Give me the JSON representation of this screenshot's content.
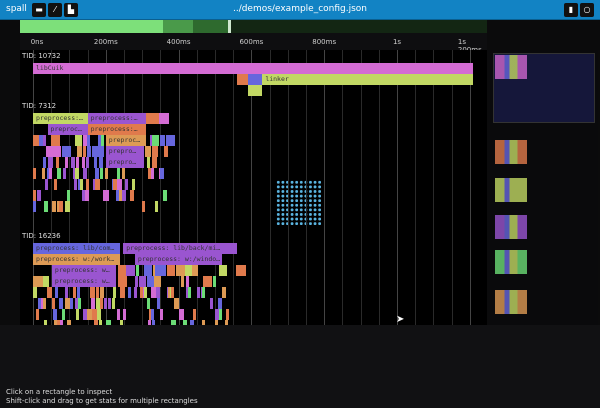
{
  "header": {
    "app_name": "spall",
    "file_name": "../demos/example_config.json",
    "buttons": [
      "folder-open-icon",
      "pen-icon",
      "chart-icon"
    ],
    "right_buttons": [
      "trash-icon",
      "settings-icon"
    ]
  },
  "colors": {
    "header": "#1283c4",
    "pink": "#d46cd4",
    "blue": "#6666dd",
    "violet": "#9a55d0",
    "orange": "#e07a4c",
    "lime": "#c2d864",
    "green": "#6bdc76",
    "amber": "#dd9a55"
  },
  "timeline": {
    "ticks": [
      "0ns",
      "200ms",
      "400ms",
      "600ms",
      "800ms",
      "1s",
      "1s 200ms"
    ],
    "tick_ms": [
      0,
      200,
      400,
      600,
      800,
      1000,
      1200
    ]
  },
  "threads": [
    {
      "label": "TID: 10732",
      "spans": [
        {
          "name": "libCuik",
          "start": 0,
          "end": 1210,
          "depth": 0,
          "color": "pink"
        },
        {
          "name": "",
          "start": 560,
          "end": 590,
          "depth": 1,
          "color": "orange"
        },
        {
          "name": "",
          "start": 590,
          "end": 630,
          "depth": 1,
          "color": "blue"
        },
        {
          "name": "linker",
          "start": 630,
          "end": 1210,
          "depth": 1,
          "color": "lime"
        },
        {
          "name": "",
          "start": 590,
          "end": 630,
          "depth": 2,
          "color": "lime"
        }
      ]
    },
    {
      "label": "TID: 7312",
      "spans": [
        {
          "name": "preprocess:…",
          "start": 0,
          "end": 150,
          "depth": 0,
          "color": "lime"
        },
        {
          "name": "preprocess:…",
          "start": 150,
          "end": 310,
          "depth": 0,
          "color": "violet"
        },
        {
          "name": "",
          "start": 310,
          "end": 345,
          "depth": 0,
          "color": "orange"
        },
        {
          "name": "",
          "start": 345,
          "end": 375,
          "depth": 0,
          "color": "pink"
        },
        {
          "name": "preproc…",
          "start": 40,
          "end": 150,
          "depth": 1,
          "color": "violet"
        },
        {
          "name": "preprocess:…",
          "start": 150,
          "end": 310,
          "depth": 1,
          "color": "orange"
        },
        {
          "name": "preproc…",
          "start": 200,
          "end": 310,
          "depth": 2,
          "color": "amber"
        },
        {
          "name": "prepro…",
          "start": 200,
          "end": 305,
          "depth": 3,
          "color": "violet"
        },
        {
          "name": "prepro…",
          "start": 200,
          "end": 305,
          "depth": 4,
          "color": "violet"
        }
      ]
    },
    {
      "label": "TID: 16236",
      "spans": [
        {
          "name": "preprocess: lib/com…",
          "start": 0,
          "end": 240,
          "depth": 0,
          "color": "blue"
        },
        {
          "name": "preprocess: lib/back/mi…",
          "start": 248,
          "end": 560,
          "depth": 0,
          "color": "violet"
        },
        {
          "name": "preprocess: w:/work…",
          "start": 0,
          "end": 240,
          "depth": 1,
          "color": "amber"
        },
        {
          "name": "preprocess: w:/windo…",
          "start": 280,
          "end": 520,
          "depth": 1,
          "color": "violet"
        },
        {
          "name": "preprocess: w…",
          "start": 52,
          "end": 228,
          "depth": 2,
          "color": "violet"
        },
        {
          "name": "preprocess: w…",
          "start": 52,
          "end": 228,
          "depth": 3,
          "color": "violet"
        }
      ]
    }
  ],
  "help": [
    "Click on a rectangle to inspect",
    "Shift-click and drag to get stats for multiple rectangles"
  ]
}
